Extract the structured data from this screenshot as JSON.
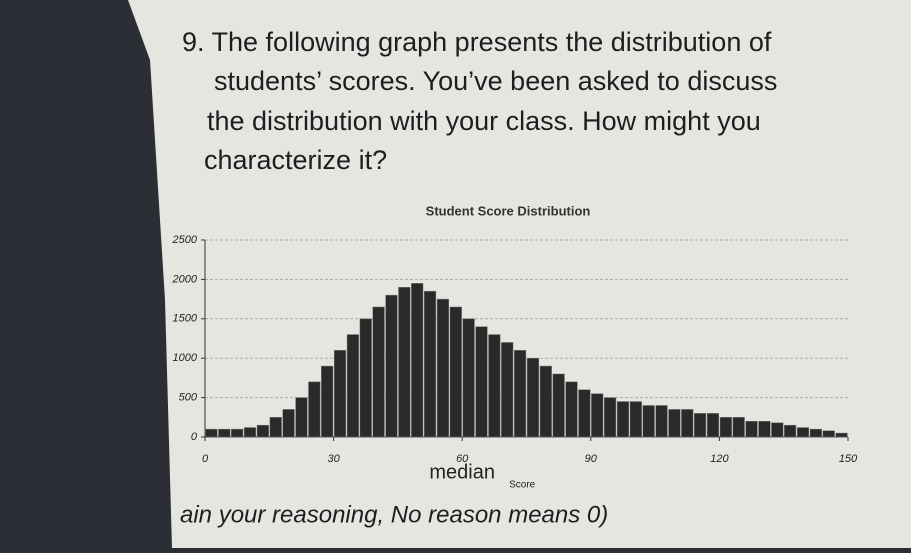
{
  "question": {
    "lines": [
      "9. The following graph presents the distribution of",
      "students’ scores. You’ve been asked to discuss",
      "the distribution with your class. How might you",
      "characterize it?"
    ]
  },
  "chart_data": {
    "type": "histogram",
    "title": "Student Score Distribution",
    "x_label": "Score",
    "annotation": "median",
    "annotation_x": 60,
    "bins": [
      0,
      3,
      6,
      9,
      12,
      15,
      18,
      21,
      24,
      27,
      30,
      33,
      36,
      39,
      42,
      45,
      48,
      51,
      54,
      57,
      60,
      63,
      66,
      69,
      72,
      75,
      78,
      81,
      84,
      87,
      90,
      93,
      96,
      99,
      102,
      105,
      108,
      111,
      114,
      117,
      120,
      123,
      126,
      129,
      132,
      135,
      138,
      141,
      144,
      147,
      150
    ],
    "values": [
      100,
      100,
      100,
      120,
      150,
      250,
      350,
      500,
      700,
      900,
      1100,
      1300,
      1500,
      1650,
      1800,
      1900,
      1950,
      1850,
      1750,
      1650,
      1500,
      1400,
      1300,
      1200,
      1100,
      1000,
      900,
      800,
      700,
      600,
      550,
      500,
      450,
      450,
      400,
      400,
      350,
      350,
      300,
      300,
      250,
      250,
      200,
      200,
      180,
      150,
      120,
      100,
      80,
      50
    ],
    "color": "#2a2a2a",
    "xlim": [
      0,
      150
    ],
    "xticks": [
      0,
      30,
      60,
      90,
      120,
      150
    ],
    "ylim": [
      0,
      2500
    ],
    "yticks": [
      0,
      500,
      1000,
      1500,
      2000,
      2500
    ],
    "grid": true
  },
  "footer": "ain your reasoning, No reason means 0)"
}
